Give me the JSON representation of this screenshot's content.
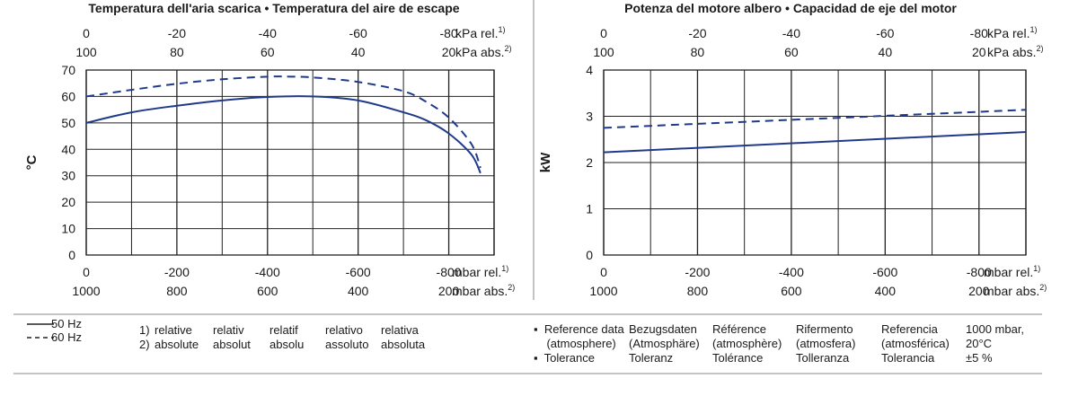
{
  "chart_data": [
    {
      "type": "line",
      "title": "Temperatura dell'aria scarica  •  Temperatura del aire de escape",
      "ylabel": "°C",
      "ylim": [
        0,
        70
      ],
      "yticks": [
        "0",
        "10",
        "20",
        "30",
        "40",
        "50",
        "60",
        "70"
      ],
      "xlim": [
        0,
        -900
      ],
      "x_bottom_ticks_rel": [
        "0",
        "-200",
        "-400",
        "-600",
        "-800"
      ],
      "x_bottom_ticks_abs": [
        "1000",
        "800",
        "600",
        "400",
        "200"
      ],
      "x_top_ticks_rel": [
        "0",
        "-20",
        "-40",
        "-60",
        "-80"
      ],
      "x_top_ticks_abs": [
        "100",
        "80",
        "60",
        "40",
        "20"
      ],
      "x_bottom_unit_rel": "mbar rel.",
      "x_bottom_unit_abs": "mbar abs.",
      "x_top_unit_rel": "kPa rel.",
      "x_top_unit_abs": "kPa abs.",
      "grid": true,
      "series": [
        {
          "name": "50 Hz",
          "style": "solid",
          "x": [
            0,
            -100,
            -200,
            -300,
            -400,
            -500,
            -600,
            -700,
            -750,
            -800,
            -850,
            -870
          ],
          "y": [
            50,
            54,
            56.5,
            58.5,
            59.8,
            60,
            58.5,
            54,
            51,
            46,
            38,
            31
          ]
        },
        {
          "name": "60 Hz",
          "style": "dashed",
          "x": [
            0,
            -100,
            -200,
            -300,
            -400,
            -450,
            -500,
            -600,
            -700,
            -750,
            -800,
            -850,
            -870
          ],
          "y": [
            60,
            62.5,
            64.8,
            66.5,
            67.5,
            67.5,
            67.2,
            65.5,
            62,
            58,
            52,
            42,
            33
          ]
        }
      ]
    },
    {
      "type": "line",
      "title": "Potenza del motore albero  •  Capacidad de eje del motor",
      "ylabel": "kW",
      "ylim": [
        0,
        4
      ],
      "yticks": [
        "0",
        "1",
        "2",
        "3",
        "4"
      ],
      "xlim": [
        0,
        -900
      ],
      "x_bottom_ticks_rel": [
        "0",
        "-200",
        "-400",
        "-600",
        "-800"
      ],
      "x_bottom_ticks_abs": [
        "1000",
        "800",
        "600",
        "400",
        "200"
      ],
      "x_top_ticks_rel": [
        "0",
        "-20",
        "-40",
        "-60",
        "-80"
      ],
      "x_top_ticks_abs": [
        "100",
        "80",
        "60",
        "40",
        "20"
      ],
      "x_bottom_unit_rel": "mbar rel.",
      "x_bottom_unit_abs": "mbar abs.",
      "x_top_unit_rel": "kPa rel.",
      "x_top_unit_abs": "kPa abs.",
      "grid": true,
      "series": [
        {
          "name": "50 Hz",
          "style": "solid",
          "x": [
            0,
            -900
          ],
          "y": [
            2.22,
            2.66
          ]
        },
        {
          "name": "60 Hz",
          "style": "dashed",
          "x": [
            0,
            -900
          ],
          "y": [
            2.75,
            3.14
          ]
        }
      ]
    }
  ],
  "sup1": "1)",
  "sup2": "2)",
  "colors": {
    "line": "#1f3a8a",
    "grid": "#222222",
    "text": "#1a1a1a",
    "rule": "#888888"
  },
  "legend": {
    "solid_label": "50 Hz",
    "dashed_label": "60 Hz"
  },
  "footnotes": {
    "n1": "1)",
    "n2": "2)",
    "cols": [
      [
        "relative",
        "absolute"
      ],
      [
        "relativ",
        "absolut"
      ],
      [
        "relatif",
        "absolu"
      ],
      [
        "relativo",
        "assoluto"
      ],
      [
        "relativa",
        "absoluta"
      ]
    ]
  },
  "reference": {
    "cols": [
      [
        "▪  Reference data",
        "    (atmosphere)",
        "▪  Tolerance"
      ],
      [
        "Bezugsdaten",
        "(Atmosphäre)",
        "Toleranz"
      ],
      [
        "Référence",
        "(atmosphère)",
        "Tolérance"
      ],
      [
        "Rifermento",
        "(atmosfera)",
        "Tolleranza"
      ],
      [
        "Referencia",
        "(atmosférica)",
        "Tolerancia"
      ],
      [
        "1000 mbar,",
        "20°C",
        "±5 %"
      ]
    ]
  }
}
